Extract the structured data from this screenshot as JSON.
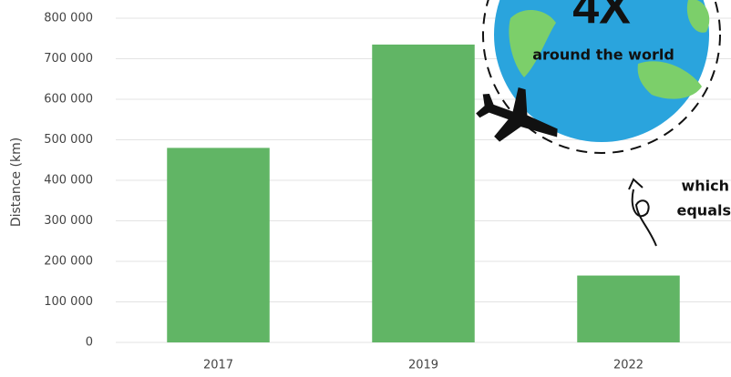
{
  "chart_data": {
    "type": "bar",
    "y_label": "Distance (km)",
    "categories": [
      "2017",
      "2019",
      "2022"
    ],
    "values": [
      480000,
      735000,
      165000
    ],
    "color": "#61b565",
    "ylim": [
      0,
      800000
    ],
    "yticks": [
      0,
      {
        "value": 100000,
        "label": "100 000"
      },
      {
        "value": 200000,
        "label": "200 000"
      },
      {
        "value": 300000,
        "label": "300 000"
      },
      {
        "value": 400000,
        "label": "400 000"
      },
      {
        "value": 500000,
        "label": "500 000"
      },
      {
        "value": 600000,
        "label": "600 000"
      },
      {
        "value": 700000,
        "label": "700 000"
      },
      {
        "value": 800000,
        "label": "800 000"
      }
    ],
    "grid": true,
    "annotations": [
      "4X",
      "around the world",
      "which",
      "equals"
    ]
  }
}
